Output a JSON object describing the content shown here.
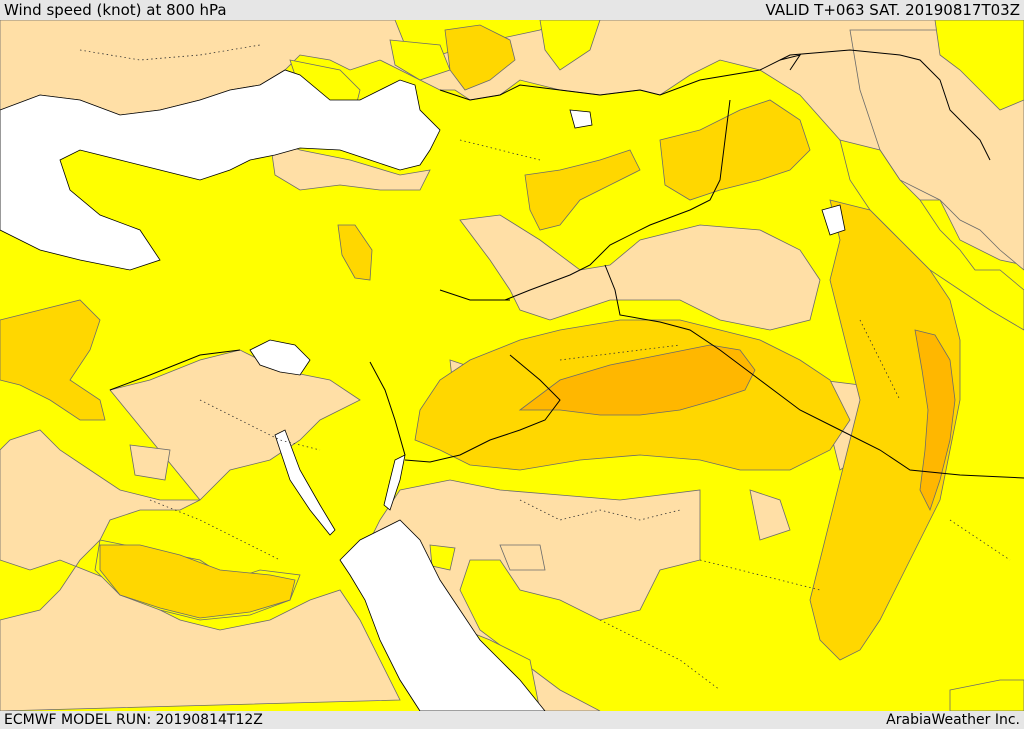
{
  "header": {
    "title": "Wind speed (knot) at 800 hPa",
    "valid_time": "VALID T+063 SAT. 20190817T03Z"
  },
  "footer": {
    "model_run": "ECMWF MODEL RUN: 20190814T12Z",
    "credit": "ArabiaWeather Inc."
  },
  "colors": {
    "sea": "#ffffff",
    "speed_low": "#ffdfa6",
    "speed_mid": "#ffff00",
    "speed_high": "#ffd700",
    "speed_max": "#ffb700",
    "border": "#000000",
    "contour": "#555555"
  }
}
